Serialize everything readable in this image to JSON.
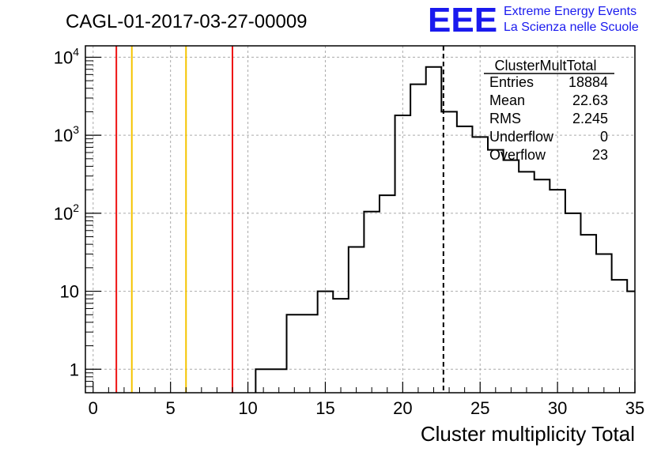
{
  "header": {
    "title": "CAGL-01-2017-03-27-00009",
    "logo_text": "EEE",
    "org_line1": "Extreme Energy Events",
    "org_line2": "La Scienza nelle Scuole"
  },
  "stats_box": {
    "title": "ClusterMultTotal",
    "rows": [
      {
        "label": "Entries",
        "value": "18884"
      },
      {
        "label": "Mean",
        "value": "22.63"
      },
      {
        "label": "RMS",
        "value": "2.245"
      },
      {
        "label": "Underflow",
        "value": "0"
      },
      {
        "label": "Overflow",
        "value": "23"
      }
    ]
  },
  "colors": {
    "histogram": "#000000",
    "red_lines": "#ee1111",
    "yellow_lines": "#f5c400",
    "logo": "#1a1aee"
  },
  "chart_data": {
    "type": "histogram",
    "title": "CAGL-01-2017-03-27-00009",
    "xlabel": "Cluster multiplicity Total",
    "ylabel": "",
    "xlim": [
      -0.5,
      35
    ],
    "ylim": [
      0.5,
      14000
    ],
    "y_scale": "log",
    "grid": true,
    "x_ticks": [
      "0",
      "5",
      "10",
      "15",
      "20",
      "25",
      "30",
      "35"
    ],
    "y_ticks": [
      {
        "value": 1,
        "base": "1",
        "exp": ""
      },
      {
        "value": 10,
        "base": "10",
        "exp": ""
      },
      {
        "value": 100,
        "base": "10",
        "exp": "2"
      },
      {
        "value": 1000,
        "base": "10",
        "exp": "3"
      },
      {
        "value": 10000,
        "base": "10",
        "exp": "4"
      }
    ],
    "bins": [
      {
        "lo": 10.5,
        "hi": 12.5,
        "count": 1
      },
      {
        "lo": 12.5,
        "hi": 14.5,
        "count": 5
      },
      {
        "lo": 14.5,
        "hi": 15.5,
        "count": 10
      },
      {
        "lo": 15.5,
        "hi": 16.5,
        "count": 8
      },
      {
        "lo": 16.5,
        "hi": 17.5,
        "count": 37
      },
      {
        "lo": 17.5,
        "hi": 18.5,
        "count": 105
      },
      {
        "lo": 18.5,
        "hi": 19.5,
        "count": 170
      },
      {
        "lo": 19.5,
        "hi": 20.5,
        "count": 1800
      },
      {
        "lo": 20.5,
        "hi": 21.5,
        "count": 4500
      },
      {
        "lo": 21.5,
        "hi": 22.5,
        "count": 7500
      },
      {
        "lo": 22.5,
        "hi": 23.5,
        "count": 2000
      },
      {
        "lo": 23.5,
        "hi": 24.5,
        "count": 1300
      },
      {
        "lo": 24.5,
        "hi": 25.5,
        "count": 950
      },
      {
        "lo": 25.5,
        "hi": 26.5,
        "count": 650
      },
      {
        "lo": 26.5,
        "hi": 27.5,
        "count": 480
      },
      {
        "lo": 27.5,
        "hi": 28.5,
        "count": 340
      },
      {
        "lo": 28.5,
        "hi": 29.5,
        "count": 270
      },
      {
        "lo": 29.5,
        "hi": 30.5,
        "count": 200
      },
      {
        "lo": 30.5,
        "hi": 31.5,
        "count": 100
      },
      {
        "lo": 31.5,
        "hi": 32.5,
        "count": 53
      },
      {
        "lo": 32.5,
        "hi": 33.5,
        "count": 30
      },
      {
        "lo": 33.5,
        "hi": 34.5,
        "count": 14
      },
      {
        "lo": 34.5,
        "hi": 35.0,
        "count": 10
      }
    ],
    "mean_line": 22.63,
    "red_lines": [
      1.5,
      9.0
    ],
    "yellow_lines": [
      2.5,
      6.0
    ]
  }
}
